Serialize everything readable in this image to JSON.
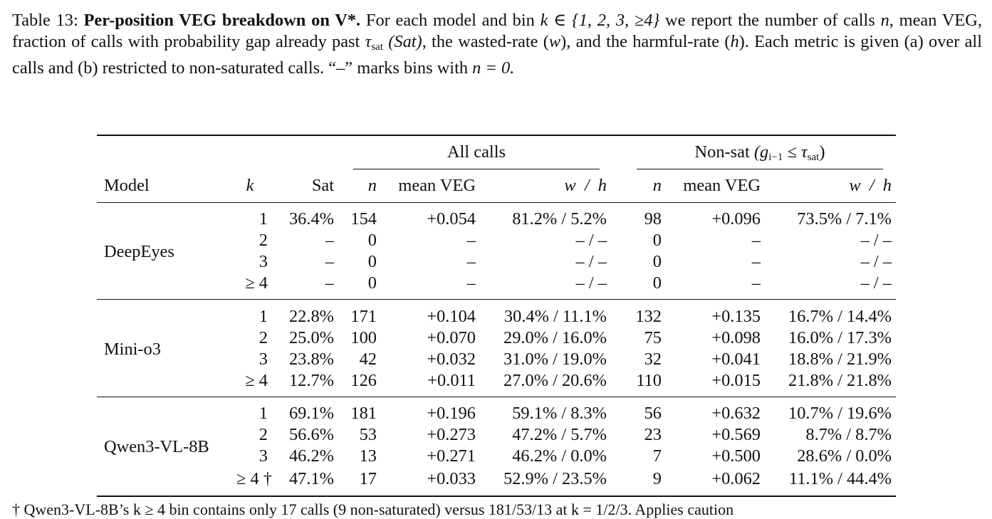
{
  "caption": {
    "label": "Table 13:",
    "title": "Per-position VEG breakdown on V*.",
    "line1_rest": "For each model and bin",
    "bin_set": "k ∈ {1, 2, 3, ≥4}",
    "line1_tail": "we report the number",
    "line2": "of calls",
    "n_sym": "n",
    "line2b": ", mean VEG, fraction of calls with probability gap already past",
    "tau": "τ",
    "tau_sub": "sat",
    "sat_paren": "(Sat)",
    "line2c": ", the wasted-rate (",
    "w_sym": "w",
    "line2d": "), and the",
    "line3a": "harmful-rate (",
    "h_sym": "h",
    "line3b": "). Each metric is given (a) over all calls and (b) restricted to non-saturated calls. “–” marks bins with",
    "line4": "n = 0."
  },
  "table": {
    "group_all": "All calls",
    "group_nonsat": "Non-sat",
    "group_nonsat_cond": "(g",
    "group_nonsat_cond_sub": "i−1",
    "group_nonsat_cond_rest": " ≤ τ",
    "group_nonsat_cond_sub2": "sat",
    "group_nonsat_close": ")",
    "headers": {
      "model": "Model",
      "k": "k",
      "sat": "Sat",
      "n": "n",
      "mean_veg": "mean VEG",
      "wh": "w  /  h",
      "n2": "n",
      "mean_veg2": "mean VEG",
      "wh2": "w  /  h"
    },
    "groups": [
      {
        "model": "DeepEyes",
        "rows": [
          {
            "k": "1",
            "sat": "36.4%",
            "n": "154",
            "veg": "+0.054",
            "wh": "81.2% / 5.2%",
            "n2": "98",
            "veg2": "+0.096",
            "wh2": "73.5% / 7.1%"
          },
          {
            "k": "2",
            "sat": "–",
            "n": "0",
            "veg": "–",
            "wh": "– / –",
            "n2": "0",
            "veg2": "–",
            "wh2": "– / –"
          },
          {
            "k": "3",
            "sat": "–",
            "n": "0",
            "veg": "–",
            "wh": "– / –",
            "n2": "0",
            "veg2": "–",
            "wh2": "– / –"
          },
          {
            "k": "≥ 4",
            "sat": "–",
            "n": "0",
            "veg": "–",
            "wh": "– / –",
            "n2": "0",
            "veg2": "–",
            "wh2": "– / –"
          }
        ]
      },
      {
        "model": "Mini-o3",
        "rows": [
          {
            "k": "1",
            "sat": "22.8%",
            "n": "171",
            "veg": "+0.104",
            "wh": "30.4% / 11.1%",
            "n2": "132",
            "veg2": "+0.135",
            "wh2": "16.7% / 14.4%"
          },
          {
            "k": "2",
            "sat": "25.0%",
            "n": "100",
            "veg": "+0.070",
            "wh": "29.0% / 16.0%",
            "n2": "75",
            "veg2": "+0.098",
            "wh2": "16.0% / 17.3%"
          },
          {
            "k": "3",
            "sat": "23.8%",
            "n": "42",
            "veg": "+0.032",
            "wh": "31.0% / 19.0%",
            "n2": "32",
            "veg2": "+0.041",
            "wh2": "18.8% / 21.9%"
          },
          {
            "k": "≥ 4",
            "sat": "12.7%",
            "n": "126",
            "veg": "+0.011",
            "wh": "27.0% / 20.6%",
            "n2": "110",
            "veg2": "+0.015",
            "wh2": "21.8% / 21.8%"
          }
        ]
      },
      {
        "model": "Qwen3-VL-8B",
        "rows": [
          {
            "k": "1",
            "sat": "69.1%",
            "n": "181",
            "veg": "+0.196",
            "wh": "59.1% / 8.3%",
            "n2": "56",
            "veg2": "+0.632",
            "wh2": "10.7% / 19.6%"
          },
          {
            "k": "2",
            "sat": "56.6%",
            "n": "53",
            "veg": "+0.273",
            "wh": "47.2% / 5.7%",
            "n2": "23",
            "veg2": "+0.569",
            "wh2": "8.7% / 8.7%"
          },
          {
            "k": "3",
            "sat": "46.2%",
            "n": "13",
            "veg": "+0.271",
            "wh": "46.2% / 0.0%",
            "n2": "7",
            "veg2": "+0.500",
            "wh2": "28.6% / 0.0%"
          },
          {
            "k": "≥ 4 †",
            "sat": "47.1%",
            "n": "17",
            "veg": "+0.033",
            "wh": "52.9% / 23.5%",
            "n2": "9",
            "veg2": "+0.062",
            "wh2": "11.1% / 44.4%"
          }
        ]
      }
    ]
  },
  "footnote": "† Qwen3-VL-8B’s k ≥ 4 bin contains only 17 calls (9 non-saturated) versus 181/53/13 at k = 1/2/3. Applies caution"
}
